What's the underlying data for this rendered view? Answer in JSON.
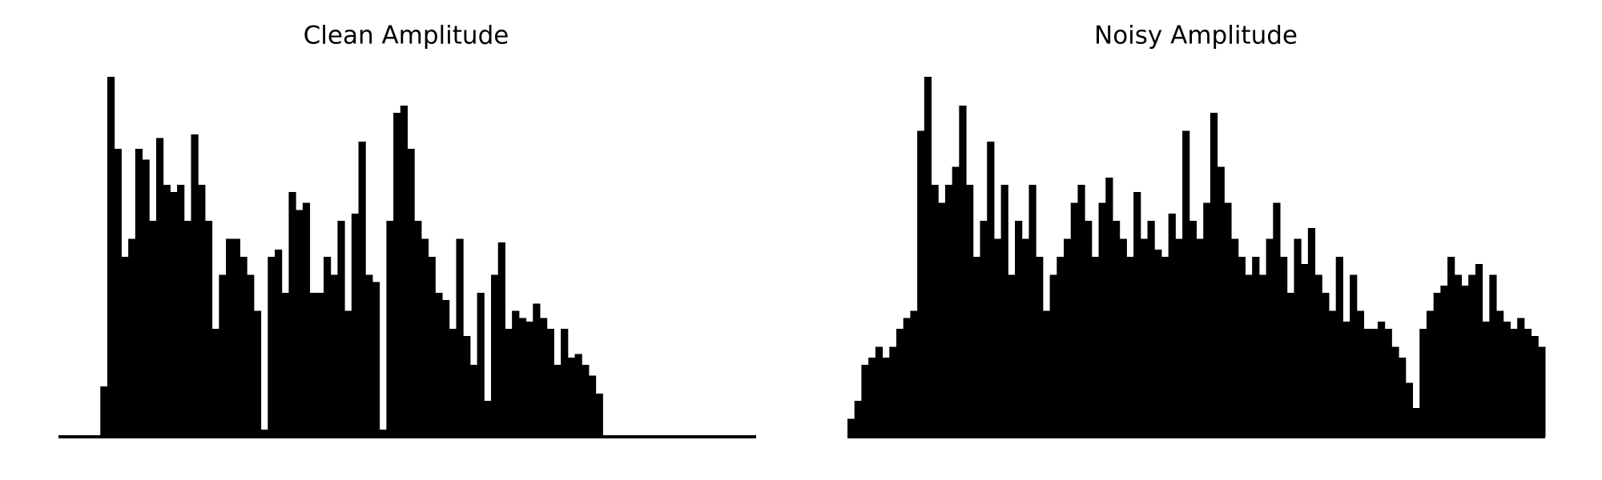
{
  "chart_data": [
    {
      "type": "bar",
      "title": "Clean Amplitude",
      "color": "#000000",
      "ylim": [
        0,
        1
      ],
      "values": [
        0,
        0,
        0,
        0,
        0,
        0,
        0.14,
        1.0,
        0.8,
        0.5,
        0.55,
        0.8,
        0.77,
        0.6,
        0.83,
        0.7,
        0.68,
        0.7,
        0.6,
        0.84,
        0.7,
        0.6,
        0.3,
        0.45,
        0.55,
        0.55,
        0.5,
        0.45,
        0.35,
        0.02,
        0.5,
        0.52,
        0.4,
        0.68,
        0.63,
        0.65,
        0.4,
        0.4,
        0.5,
        0.45,
        0.6,
        0.35,
        0.62,
        0.82,
        0.45,
        0.43,
        0.02,
        0.6,
        0.9,
        0.92,
        0.8,
        0.6,
        0.55,
        0.5,
        0.4,
        0.38,
        0.3,
        0.55,
        0.28,
        0.2,
        0.4,
        0.1,
        0.45,
        0.54,
        0.3,
        0.35,
        0.33,
        0.32,
        0.37,
        0.33,
        0.3,
        0.2,
        0.3,
        0.22,
        0.23,
        0.2,
        0.17,
        0.12,
        0,
        0,
        0,
        0,
        0,
        0,
        0,
        0,
        0,
        0,
        0,
        0,
        0,
        0,
        0,
        0,
        0,
        0,
        0,
        0,
        0,
        0
      ]
    },
    {
      "type": "bar",
      "title": "Noisy Amplitude",
      "color": "#000000",
      "ylim": [
        0,
        1
      ],
      "values": [
        0.05,
        0.1,
        0.2,
        0.22,
        0.25,
        0.22,
        0.25,
        0.3,
        0.33,
        0.35,
        0.85,
        1.0,
        0.7,
        0.65,
        0.7,
        0.75,
        0.92,
        0.7,
        0.5,
        0.6,
        0.82,
        0.55,
        0.7,
        0.45,
        0.6,
        0.55,
        0.7,
        0.5,
        0.35,
        0.45,
        0.5,
        0.55,
        0.65,
        0.7,
        0.6,
        0.5,
        0.65,
        0.72,
        0.6,
        0.55,
        0.5,
        0.68,
        0.55,
        0.6,
        0.52,
        0.5,
        0.62,
        0.55,
        0.85,
        0.6,
        0.55,
        0.65,
        0.9,
        0.75,
        0.65,
        0.55,
        0.5,
        0.45,
        0.5,
        0.45,
        0.55,
        0.65,
        0.5,
        0.4,
        0.55,
        0.48,
        0.58,
        0.45,
        0.4,
        0.35,
        0.5,
        0.32,
        0.45,
        0.35,
        0.3,
        0.3,
        0.32,
        0.3,
        0.25,
        0.22,
        0.15,
        0.08,
        0.3,
        0.35,
        0.4,
        0.42,
        0.5,
        0.45,
        0.42,
        0.45,
        0.48,
        0.32,
        0.45,
        0.35,
        0.32,
        0.3,
        0.33,
        0.3,
        0.28,
        0.25
      ]
    }
  ]
}
